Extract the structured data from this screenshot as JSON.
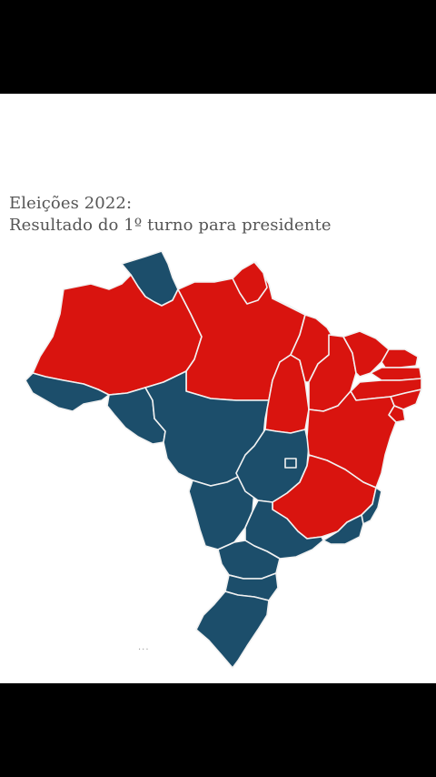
{
  "title": {
    "line1": "Eleições 2022:",
    "line2": "Resultado do 1º turno para presidente"
  },
  "colors": {
    "red": "#d9140f",
    "blue": "#1c4e6b",
    "background": "#ffffff",
    "frame": "#000000",
    "border": "#f2f2f2"
  },
  "overflow_menu": "..."
}
